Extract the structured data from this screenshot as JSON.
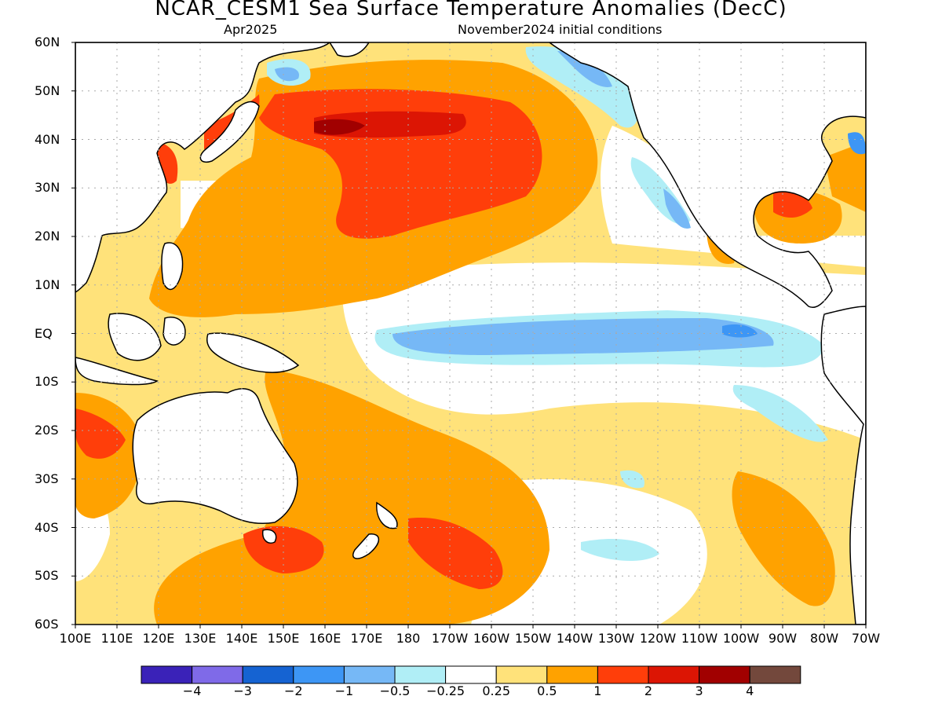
{
  "header": {
    "title": "NCAR_CESM1 Sea Surface Temperature Anomalies (DecC)",
    "subtitle_left": "Apr2025",
    "subtitle_right": "November2024 initial conditions"
  },
  "axes": {
    "lat_labels": [
      "60N",
      "50N",
      "40N",
      "30N",
      "20N",
      "10N",
      "EQ",
      "10S",
      "20S",
      "30S",
      "40S",
      "50S",
      "60S"
    ],
    "lon_labels": [
      "100E",
      "110E",
      "120E",
      "130E",
      "140E",
      "150E",
      "160E",
      "170E",
      "180",
      "170W",
      "160W",
      "150W",
      "140W",
      "130W",
      "120W",
      "110W",
      "100W",
      "90W",
      "80W",
      "70W"
    ],
    "lat_range": [
      -60,
      60
    ],
    "lon_range_east": [
      100,
      290
    ]
  },
  "legend": {
    "colors": [
      "#3a22b8",
      "#7f6ae8",
      "#1563d2",
      "#3d96f5",
      "#76b8f6",
      "#b0eef6",
      "#ffffff",
      "#ffe27a",
      "#ffa200",
      "#ff3e0a",
      "#dc1504",
      "#a10000",
      "#73483c"
    ],
    "labels": [
      "−4",
      "−3",
      "−2",
      "−1",
      "−0.5",
      "−0.25",
      "0.25",
      "0.5",
      "1",
      "2",
      "3",
      "4"
    ]
  },
  "colors": {
    "land": "#ffffff",
    "coast": "#000000",
    "grid": "#aaaaaa"
  }
}
